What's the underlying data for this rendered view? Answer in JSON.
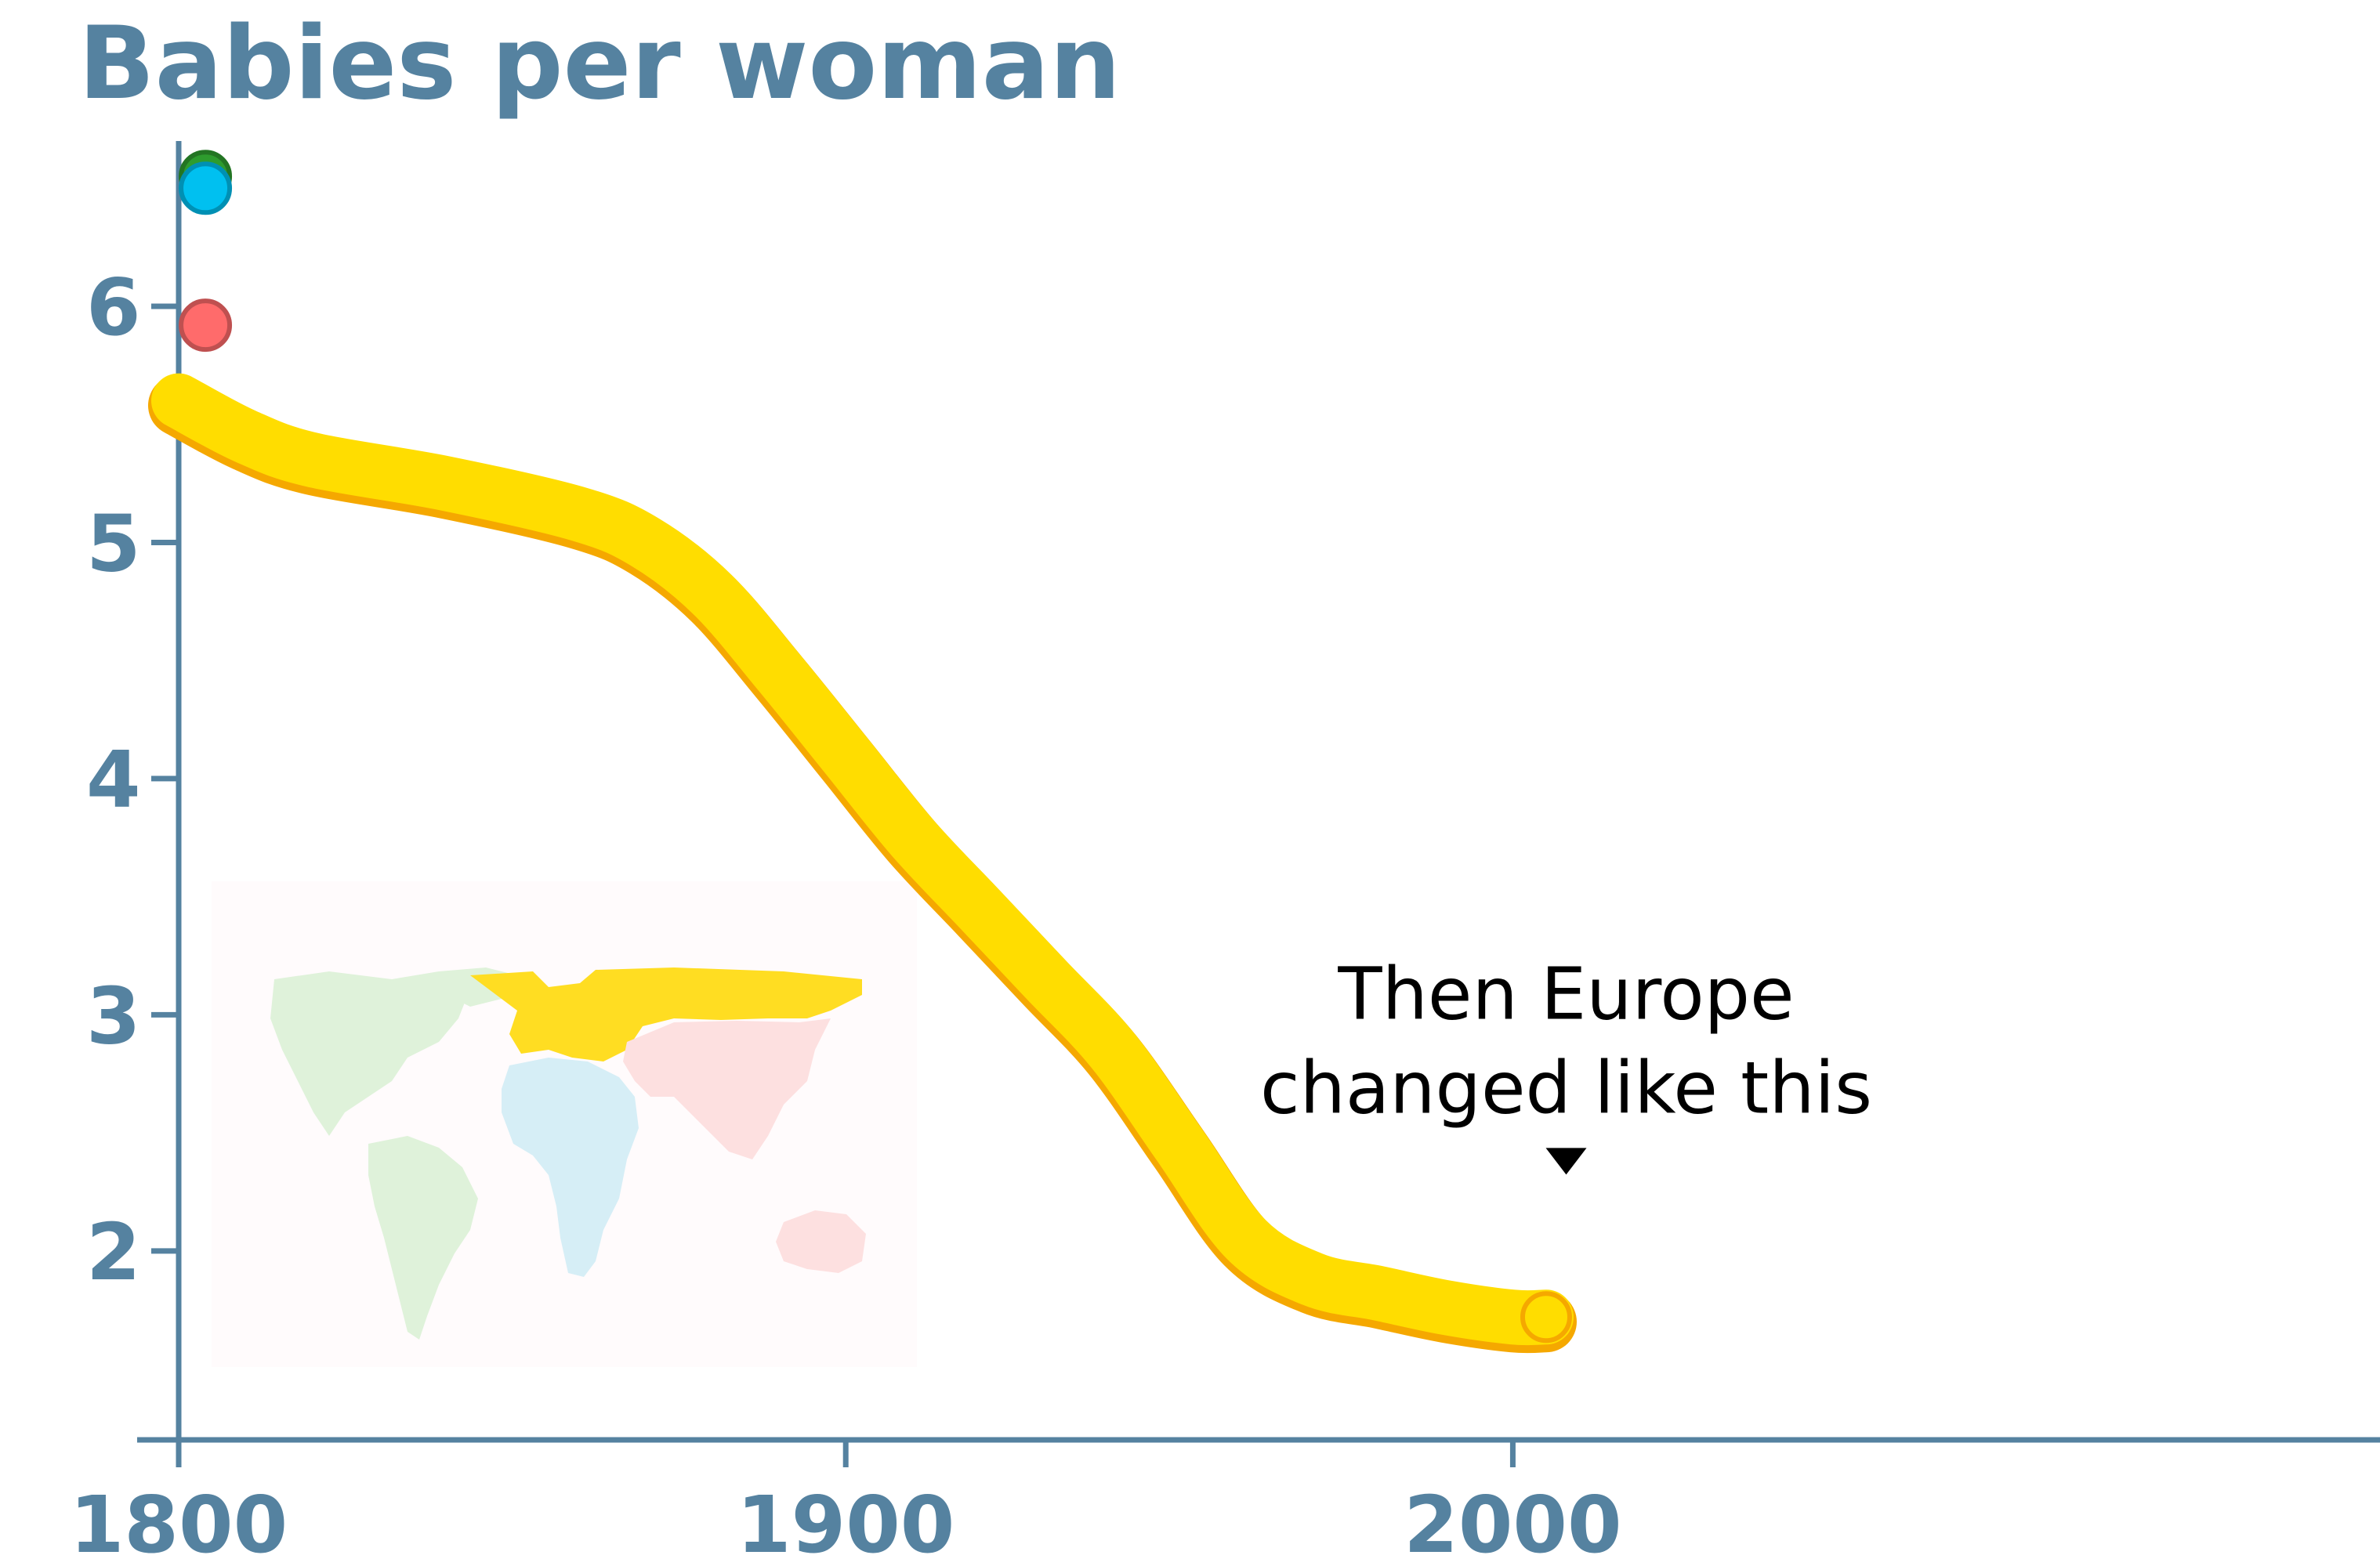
{
  "chart_data": {
    "type": "line",
    "title": "Babies per woman",
    "xlabel": "",
    "ylabel": "",
    "xlim": [
      1800,
      2130
    ],
    "ylim": [
      1.2,
      6.7
    ],
    "x_ticks": [
      1800,
      1900,
      2000
    ],
    "x_tick_labels": [
      "1800",
      "1900",
      "2000"
    ],
    "y_ticks": [
      2,
      3,
      4,
      5,
      6
    ],
    "y_tick_labels": [
      "2",
      "3",
      "4",
      "5",
      "6"
    ],
    "grid": false,
    "legend": "none",
    "series": [
      {
        "color": "#FFDD00",
        "edge_color": "#F5A800",
        "x": [
          1800,
          1810,
          1820,
          1840,
          1860,
          1870,
          1880,
          1890,
          1900,
          1910,
          1920,
          1930,
          1940,
          1950,
          1960,
          1970,
          1980,
          1990,
          2000,
          2005
        ],
        "y": [
          5.6,
          5.45,
          5.35,
          5.25,
          5.12,
          5.0,
          4.78,
          4.45,
          4.1,
          3.75,
          3.45,
          3.15,
          2.85,
          2.45,
          2.05,
          1.88,
          1.82,
          1.76,
          1.72,
          1.72
        ]
      }
    ],
    "points": [
      {
        "x": 1804,
        "y": 6.55,
        "color": "#2E9C2E"
      },
      {
        "x": 1804,
        "y": 6.5,
        "color": "#00C0F0"
      },
      {
        "x": 1804,
        "y": 5.92,
        "color": "#FF6B6B"
      }
    ],
    "annotation": {
      "lines": [
        "Then Europe",
        "changed like this"
      ],
      "x": 2008,
      "y": 3.0
    },
    "colors": {
      "axis": "#5582A0",
      "map_americas": "#DFF2DA",
      "map_europe": "#FFDD22",
      "map_africa": "#D6EEF6",
      "map_asia": "#FDE0E0",
      "map_background": "#FFFBFC"
    }
  }
}
